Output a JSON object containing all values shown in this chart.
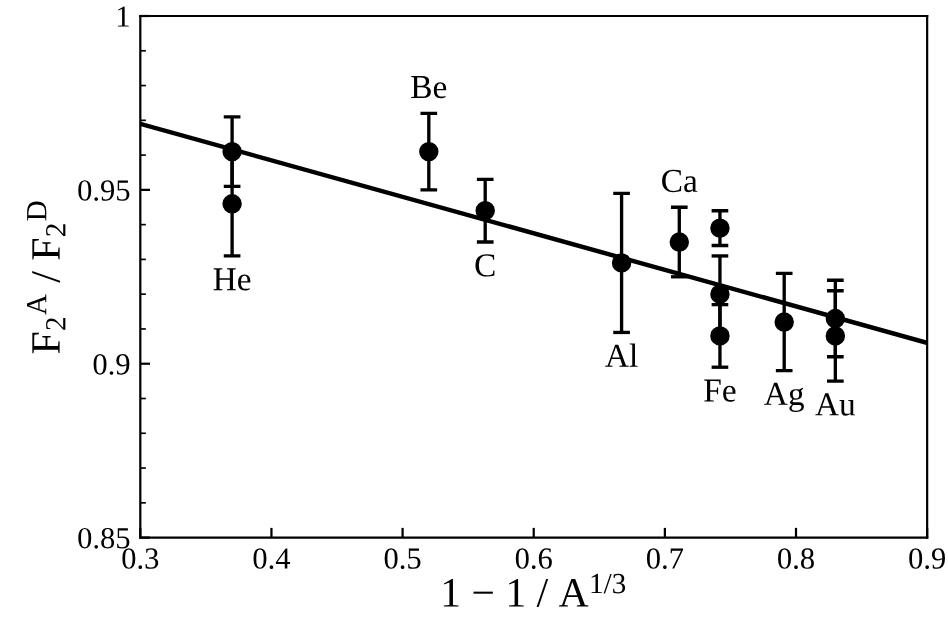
{
  "chart_data": {
    "type": "scatter",
    "xlabel": "1 − 1 / A$^{1/3}$",
    "ylabel": "F$_{2}$$^{A}$ / F$_{2}$$^{D}$",
    "xlim": [
      0.3,
      0.9
    ],
    "ylim": [
      0.85,
      1
    ],
    "xticks": [
      0.3,
      0.4,
      0.5,
      0.6,
      0.7,
      0.8,
      0.9
    ],
    "yticks": [
      0.85,
      0.9,
      0.95,
      1
    ],
    "grid": false,
    "series": [
      {
        "color": "#000000",
        "marker": "circle",
        "x": [
          0.37,
          0.37,
          0.52,
          0.563,
          0.667,
          0.711,
          0.742,
          0.742,
          0.742,
          0.791,
          0.83,
          0.83
        ],
        "values": [
          0.961,
          0.946,
          0.961,
          0.944,
          0.929,
          0.935,
          0.939,
          0.92,
          0.908,
          0.912,
          0.913,
          0.908
        ],
        "errors": [
          0.01,
          0.015,
          0.011,
          0.009,
          0.02,
          0.01,
          0.005,
          0.011,
          0.009,
          0.014,
          0.011,
          0.013
        ]
      },
      {
        "type": "line",
        "color": "#000000",
        "x": [
          0.3,
          0.9
        ],
        "values": [
          0.969,
          0.906
        ],
        "line_style": "solid",
        "marker": "none"
      }
    ],
    "annotations": [
      {
        "text": "He",
        "x": 0.37,
        "y": 0.946
      },
      {
        "text": "Be",
        "x": 0.52,
        "y": 0.961
      },
      {
        "text": "C",
        "x": 0.563,
        "y": 0.944
      },
      {
        "text": "Al",
        "x": 0.667,
        "y": 0.929
      },
      {
        "text": "Ca",
        "x": 0.711,
        "y": 0.935
      },
      {
        "text": "Fe",
        "x": 0.742,
        "y": 0.908
      },
      {
        "text": "Ag",
        "x": 0.791,
        "y": 0.912
      },
      {
        "text": "Au",
        "x": 0.83,
        "y": 0.908
      }
    ]
  }
}
